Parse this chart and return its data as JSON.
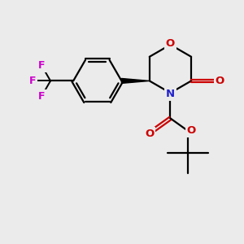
{
  "background_color": "#ebebeb",
  "atom_colors": {
    "C": "#000000",
    "N": "#2222cc",
    "O": "#cc0000",
    "F": "#cc00cc"
  },
  "figsize": [
    3.0,
    3.0
  ],
  "dpi": 100,
  "bond_lw": 1.6,
  "font_size": 9.5
}
